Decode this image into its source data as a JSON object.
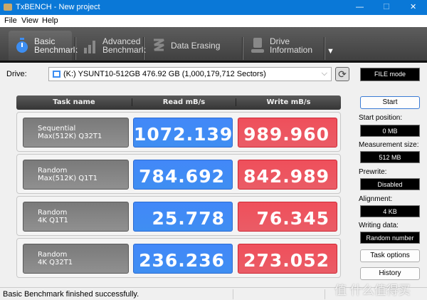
{
  "window": {
    "title": "TxBENCH - New project",
    "minimize": "—",
    "maximize": "☐",
    "close": "✕"
  },
  "menu": [
    "File",
    "View",
    "Help"
  ],
  "tabs": [
    {
      "label1": "Basic",
      "label2": "Benchmark",
      "icon": "stopwatch-icon"
    },
    {
      "label1": "Advanced",
      "label2": "Benchmark",
      "icon": "bar-chart-icon"
    },
    {
      "label1": "Data Erasing",
      "label2": "",
      "icon": "eraser-icon"
    },
    {
      "label1": "Drive",
      "label2": "Information",
      "icon": "drive-info-icon"
    }
  ],
  "drive": {
    "label": "Drive:",
    "value": "(K:) YSUNT10-512GB  476.92 GB (1,000,179,712 Sectors)",
    "mode": "FILE mode"
  },
  "table": {
    "headers": [
      "Task name",
      "Read mB/s",
      "Write mB/s"
    ],
    "rows": [
      {
        "task": "Sequential\nMax(512K) Q32T1",
        "read": "1072.139",
        "write": "989.960"
      },
      {
        "task": "Random\nMax(512K) Q1T1",
        "read": "784.692",
        "write": "842.989"
      },
      {
        "task": "Random\n4K Q1T1",
        "read": "25.778",
        "write": "76.345"
      },
      {
        "task": "Random\n4K Q32T1",
        "read": "236.236",
        "write": "273.052"
      }
    ]
  },
  "panel": {
    "start": "Start",
    "start_position_label": "Start position:",
    "start_position": "0 MB",
    "measurement_size_label": "Measurement size:",
    "measurement_size": "512 MB",
    "prewrite_label": "Prewrite:",
    "prewrite": "Disabled",
    "alignment_label": "Alignment:",
    "alignment": "4 KB",
    "writing_data_label": "Writing data:",
    "writing_data": "Random number",
    "task_options": "Task options",
    "history": "History"
  },
  "status": "Basic Benchmark finished successfully.",
  "watermark": "值 什么值得买",
  "colors": {
    "read": "#4288f8",
    "write": "#ef4f5b",
    "titlebar": "#0a78d7"
  }
}
